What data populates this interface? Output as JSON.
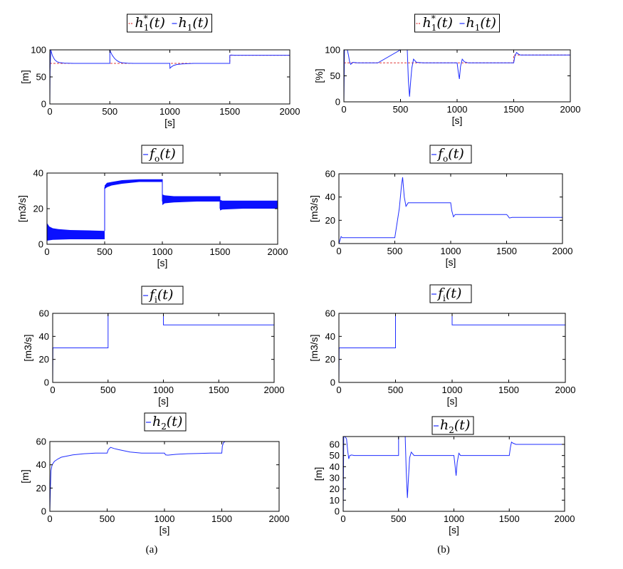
{
  "figure": {
    "caption_left": "(a)",
    "caption_right": "(b)"
  },
  "chart_data": [
    {
      "id": "a1",
      "type": "line",
      "column": "a",
      "title_series": [
        {
          "sym": "h",
          "sub": "1",
          "sup": "*",
          "arg": "(t)",
          "color": "#e03c3c",
          "dashed": true
        },
        {
          "sym": "h",
          "sub": "1",
          "sup": "",
          "arg": "(t)",
          "color": "#1f2dff",
          "dashed": false
        }
      ],
      "xlabel": "[s]",
      "ylabel": "[m]",
      "xlim": [
        0,
        2000
      ],
      "ylim": [
        0,
        100
      ],
      "xticks": [
        0,
        500,
        1000,
        1500,
        2000
      ],
      "yticks": [
        0,
        50,
        100
      ],
      "series": [
        {
          "color": "#e03c3c",
          "dashed": true,
          "x": [
            0,
            500,
            500,
            1000,
            1000,
            1500,
            1500,
            2000
          ],
          "y": [
            75,
            75,
            75,
            75,
            75,
            75,
            90,
            90
          ]
        },
        {
          "color": "#1f2dff",
          "dashed": false,
          "x": [
            0,
            2,
            8,
            20,
            40,
            60,
            80,
            120,
            200,
            300,
            500,
            500,
            505,
            520,
            540,
            560,
            580,
            600,
            650,
            700,
            800,
            1000,
            1001,
            1010,
            1030,
            1060,
            1100,
            1200,
            1300,
            1500,
            1500,
            1510,
            1540,
            1600,
            1800,
            2000
          ],
          "y": [
            0,
            60,
            100,
            90,
            82,
            78,
            76.5,
            75.5,
            75,
            75,
            75,
            100,
            97,
            90,
            84,
            80,
            77.5,
            76.2,
            75.3,
            75,
            75,
            75,
            66,
            68,
            71,
            73,
            74,
            75,
            75,
            75,
            90,
            90.5,
            90,
            90,
            90,
            90
          ]
        }
      ]
    },
    {
      "id": "b1",
      "type": "line",
      "column": "b",
      "title_series": [
        {
          "sym": "h",
          "sub": "1",
          "sup": "*",
          "arg": "(t)",
          "color": "#e03c3c",
          "dashed": true
        },
        {
          "sym": "h",
          "sub": "1",
          "sup": "",
          "arg": "(t)",
          "color": "#1f2dff",
          "dashed": false
        }
      ],
      "xlabel": "[s]",
      "ylabel": "[%]",
      "xlim": [
        0,
        2000
      ],
      "ylim": [
        0,
        100
      ],
      "xticks": [
        0,
        500,
        1000,
        1500,
        2000
      ],
      "yticks": [
        0,
        50,
        100
      ],
      "series": [
        {
          "color": "#e03c3c",
          "dashed": true,
          "x": [
            0,
            500,
            500,
            1000,
            1000,
            1500,
            1500,
            2000
          ],
          "y": [
            75,
            75,
            75,
            75,
            75,
            75,
            90,
            90
          ]
        },
        {
          "color": "#1f2dff",
          "dashed": false,
          "x": [
            0,
            5,
            15,
            30,
            40,
            50,
            60,
            80,
            120,
            300,
            500,
            500,
            540,
            560,
            570,
            580,
            590,
            600,
            615,
            640,
            700,
            800,
            1000,
            1010,
            1020,
            1030,
            1045,
            1065,
            1100,
            1300,
            1500,
            1510,
            1525,
            1540,
            1560,
            1600,
            2000
          ],
          "y": [
            0,
            100,
            100,
            100,
            90,
            78,
            72,
            76,
            75,
            75,
            100,
            100,
            100,
            100,
            40,
            10,
            40,
            65,
            82,
            76,
            75,
            75,
            75,
            58,
            44,
            68,
            82,
            77,
            75,
            75,
            75,
            88,
            95,
            92,
            90,
            90,
            90
          ]
        }
      ]
    },
    {
      "id": "a2",
      "type": "line",
      "column": "a",
      "title_series": [
        {
          "sym": "f",
          "sub": "o",
          "sup": "",
          "arg": "(t)",
          "color": "#1f2dff",
          "dashed": false
        }
      ],
      "xlabel": "[s]",
      "ylabel": "[m3/s]",
      "xlim": [
        0,
        2000
      ],
      "ylim": [
        0,
        40
      ],
      "xticks": [
        0,
        500,
        1000,
        1500,
        2000
      ],
      "yticks": [
        0,
        20,
        40
      ],
      "bands": [
        {
          "x": [
            0,
            20,
            50,
            100,
            200,
            350,
            500
          ],
          "lower": [
            2,
            2.2,
            2.5,
            2.6,
            2.8,
            2.8,
            2.8
          ],
          "upper": [
            12,
            10,
            9,
            8.5,
            8,
            7.8,
            7.5
          ],
          "color": "#0a10ff"
        },
        {
          "x": [
            500,
            520,
            560,
            650,
            800,
            1000
          ],
          "lower": [
            31,
            32,
            33,
            34,
            35,
            35
          ],
          "upper": [
            33,
            34.5,
            35,
            36,
            36.5,
            36.5
          ],
          "color": "#0a10ff"
        },
        {
          "x": [
            1000,
            1020,
            1100,
            1300,
            1500
          ],
          "lower": [
            22,
            23,
            23.5,
            24,
            24
          ],
          "upper": [
            28,
            27.5,
            27,
            27,
            27
          ],
          "color": "#0a10ff"
        },
        {
          "x": [
            1500,
            1520,
            1700,
            2000
          ],
          "lower": [
            19,
            19.5,
            20,
            20
          ],
          "upper": [
            25,
            24.5,
            24.5,
            24.5
          ],
          "color": "#0a10ff"
        }
      ],
      "series": [
        {
          "color": "#0a10ff",
          "dashed": false,
          "x": [
            500,
            500
          ],
          "y": [
            7.5,
            32
          ]
        },
        {
          "color": "#0a10ff",
          "dashed": false,
          "x": [
            1000,
            1000
          ],
          "y": [
            36.5,
            24
          ]
        },
        {
          "color": "#0a10ff",
          "dashed": false,
          "x": [
            1500,
            1500
          ],
          "y": [
            27,
            20
          ]
        }
      ]
    },
    {
      "id": "b2",
      "type": "line",
      "column": "b",
      "title_series": [
        {
          "sym": "f",
          "sub": "o",
          "sup": "",
          "arg": "(t)",
          "color": "#1f2dff",
          "dashed": false
        }
      ],
      "xlabel": "[s]",
      "ylabel": "[m3/s]",
      "xlim": [
        0,
        2000
      ],
      "ylim": [
        0,
        60
      ],
      "xticks": [
        0,
        500,
        1000,
        1500,
        2000
      ],
      "yticks": [
        0,
        20,
        40,
        60
      ],
      "series": [
        {
          "color": "#1f2dff",
          "dashed": false,
          "x": [
            0,
            20,
            30,
            40,
            60,
            100,
            500,
            540,
            560,
            570,
            585,
            600,
            620,
            650,
            1000,
            1010,
            1025,
            1040,
            1100,
            1500,
            1510,
            1525,
            1550,
            2000
          ],
          "y": [
            0,
            6,
            5,
            5,
            5,
            5,
            5,
            30,
            50,
            57,
            40,
            32,
            35,
            35,
            35,
            28,
            23,
            25,
            25,
            25,
            24,
            22,
            22.5,
            22.5
          ]
        }
      ]
    },
    {
      "id": "a3",
      "type": "line",
      "column": "a",
      "title_series": [
        {
          "sym": "f",
          "sub": "i",
          "sup": "",
          "arg": "(t)",
          "color": "#1f2dff",
          "dashed": false
        }
      ],
      "xlabel": "[s]",
      "ylabel": "[m3/s]",
      "xlim": [
        0,
        2000
      ],
      "ylim": [
        0,
        60
      ],
      "xticks": [
        0,
        500,
        1000,
        1500,
        2000
      ],
      "yticks": [
        0,
        20,
        40,
        60
      ],
      "series": [
        {
          "color": "#1f2dff",
          "dashed": false,
          "x": [
            0,
            2,
            500,
            500,
            1000,
            1000,
            2000
          ],
          "y": [
            0,
            30,
            30,
            60,
            60,
            50,
            50
          ]
        }
      ]
    },
    {
      "id": "b3",
      "type": "line",
      "column": "b",
      "title_series": [
        {
          "sym": "f",
          "sub": "i",
          "sup": "",
          "arg": "(t)",
          "color": "#1f2dff",
          "dashed": false
        }
      ],
      "xlabel": "[s]",
      "ylabel": "[m3/s]",
      "xlim": [
        0,
        2000
      ],
      "ylim": [
        0,
        60
      ],
      "xticks": [
        0,
        500,
        1000,
        1500,
        2000
      ],
      "yticks": [
        0,
        20,
        40,
        60
      ],
      "series": [
        {
          "color": "#1f2dff",
          "dashed": false,
          "x": [
            0,
            2,
            500,
            500,
            1000,
            1000,
            2000
          ],
          "y": [
            0,
            30,
            30,
            60,
            60,
            50,
            50
          ]
        }
      ]
    },
    {
      "id": "a4",
      "type": "line",
      "column": "a",
      "title_series": [
        {
          "sym": "h",
          "sub": "2",
          "sup": "",
          "arg": "(t)",
          "color": "#1f2dff",
          "dashed": false
        }
      ],
      "xlabel": "[s]",
      "ylabel": "[m]",
      "xlim": [
        0,
        2000
      ],
      "ylim": [
        0,
        60
      ],
      "xticks": [
        0,
        500,
        1000,
        1500,
        2000
      ],
      "yticks": [
        0,
        20,
        40,
        60
      ],
      "series": [
        {
          "color": "#1f2dff",
          "dashed": false,
          "x": [
            0,
            5,
            10,
            20,
            40,
            70,
            100,
            150,
            200,
            300,
            400,
            500,
            510,
            530,
            560,
            600,
            700,
            800,
            900,
            1000,
            1010,
            1030,
            1060,
            1100,
            1200,
            1300,
            1400,
            1500,
            1505,
            1515,
            1530,
            1600,
            2000
          ],
          "y": [
            0,
            20,
            35,
            40,
            43,
            45,
            46.5,
            47.5,
            48.5,
            49.5,
            50,
            50,
            53,
            55,
            54,
            53,
            51,
            50,
            50,
            50,
            48.5,
            48.3,
            48.6,
            49,
            49.5,
            49.8,
            50,
            50,
            56,
            59,
            60,
            60,
            60
          ]
        }
      ]
    },
    {
      "id": "b4",
      "type": "line",
      "column": "b",
      "title_series": [
        {
          "sym": "h",
          "sub": "2",
          "sup": "",
          "arg": "(t)",
          "color": "#1f2dff",
          "dashed": false
        }
      ],
      "xlabel": "[s]",
      "ylabel": "[m]",
      "xlim": [
        0,
        2000
      ],
      "ylim": [
        0,
        67
      ],
      "xticks": [
        0,
        500,
        1000,
        1500,
        2000
      ],
      "yticks": [
        0,
        10,
        20,
        30,
        40,
        50,
        60
      ],
      "series": [
        {
          "color": "#1f2dff",
          "dashed": false,
          "x": [
            0,
            5,
            15,
            30,
            40,
            50,
            60,
            75,
            100,
            300,
            500,
            500,
            550,
            560,
            570,
            580,
            590,
            600,
            615,
            640,
            700,
            1000,
            1010,
            1020,
            1030,
            1045,
            1060,
            1100,
            1300,
            1500,
            1510,
            1520,
            1535,
            1560,
            2000
          ],
          "y": [
            0,
            67,
            67,
            65,
            55,
            47,
            50,
            50.5,
            50,
            50,
            50,
            67,
            67,
            67,
            35,
            12,
            30,
            48,
            53,
            50,
            50,
            50,
            41,
            32,
            44,
            52,
            50,
            50,
            50,
            50,
            57,
            62,
            61,
            60,
            60
          ]
        }
      ]
    }
  ]
}
